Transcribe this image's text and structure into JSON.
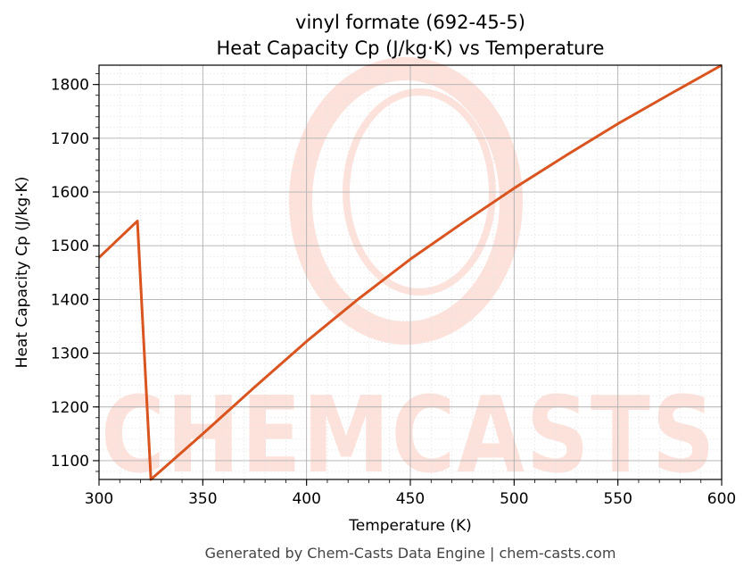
{
  "title_line1": "vinyl formate (692-45-5)",
  "title_line2": "Heat Capacity Cp (J/kg·K) vs Temperature",
  "footer": "Generated by Chem-Casts Data Engine | chem-casts.com",
  "watermark": "CHEMCASTS",
  "colors": {
    "line": "#d9541f",
    "watermark": "#fde2dc",
    "major_grid": "#b0b0b0",
    "minor_grid": "#e3e3e3"
  },
  "chart_data": {
    "type": "line",
    "title": "vinyl formate (692-45-5)\nHeat Capacity Cp (J/kg·K) vs Temperature",
    "xlabel": "Temperature (K)",
    "ylabel": "Heat Capacity Cp (J/kg·K)",
    "xlim": [
      300,
      600
    ],
    "ylim": [
      1065,
      1836
    ],
    "xticks": [
      300,
      350,
      400,
      450,
      500,
      550,
      600
    ],
    "yticks": [
      1100,
      1200,
      1300,
      1400,
      1500,
      1600,
      1700,
      1800
    ],
    "grid": true,
    "series": [
      {
        "x": [
          300,
          318.5,
          325,
          350,
          375,
          400,
          425,
          450,
          475,
          500,
          525,
          550,
          575,
          600
        ],
        "y": [
          1478,
          1546,
          1065,
          1150,
          1237,
          1322,
          1401,
          1475,
          1542,
          1607,
          1668,
          1727,
          1782,
          1836
        ]
      }
    ]
  }
}
